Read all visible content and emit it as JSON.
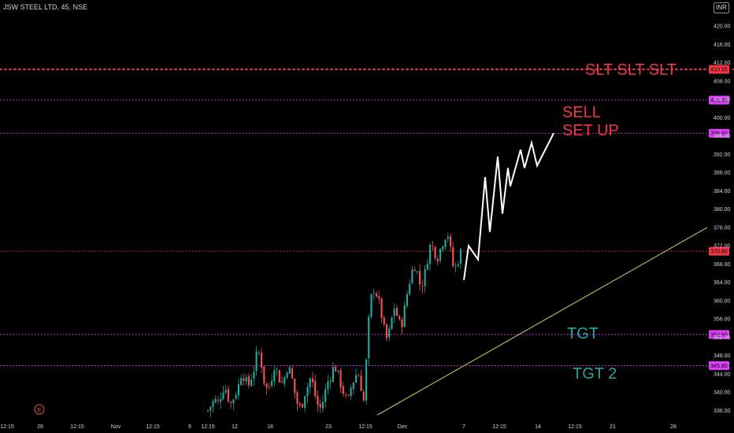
{
  "header": {
    "symbol": "JSW STEEL LTD, 45, NSE",
    "currency": "INR"
  },
  "event_marker": {
    "label": "E"
  },
  "chart_data": {
    "type": "candlestick",
    "ylim": [
      334.0,
      424.0
    ],
    "y_ticks": [
      "420.00",
      "416.00",
      "412.00",
      "408.00",
      "404.00",
      "400.00",
      "396.00",
      "392.00",
      "388.00",
      "384.00",
      "380.00",
      "376.00",
      "372.00",
      "368.00",
      "364.00",
      "360.00",
      "356.00",
      "352.00",
      "348.00",
      "344.00",
      "340.00",
      "336.00"
    ],
    "x_ticks": [
      "12:15",
      "26",
      "12:15",
      "Nov",
      "12:15",
      "9",
      "12:15",
      "12",
      "18",
      "23",
      "12:15",
      "Dec",
      "7",
      "12:15",
      "14",
      "12:15",
      "21",
      "28"
    ],
    "levels": [
      {
        "value": 410.55,
        "label": "410.55",
        "color": "#f23645",
        "style": "dotted"
      },
      {
        "value": 403.85,
        "label": "403.85",
        "color": "#e040fb",
        "style": "dotted"
      },
      {
        "value": 396.6,
        "label": "396.60",
        "color": "#e040fb",
        "style": "dotted"
      },
      {
        "value": 370.8,
        "label": "370.80",
        "color": "#f23645",
        "style": "dotted"
      },
      {
        "value": 352.6,
        "label": "352.60",
        "color": "#e040fb",
        "style": "dotted"
      },
      {
        "value": 345.8,
        "label": "345.80",
        "color": "#e040fb",
        "style": "dotted"
      }
    ],
    "annotations": [
      {
        "text": "SLT SLT SLT",
        "color": "#f23645"
      },
      {
        "text": "SELL",
        "color": "#f23645"
      },
      {
        "text": "SET UP",
        "color": "#f23645"
      },
      {
        "text": "TGT",
        "color": "#26a69a"
      },
      {
        "text": "TGT 2",
        "color": "#26a69a"
      }
    ],
    "trendline": {
      "from_price": 335.0,
      "to_price": 376.0,
      "color": "#d4d45a"
    },
    "projection_path_prices": [
      364.5,
      372.0,
      369.0,
      387.0,
      375.0,
      391.5,
      379.0,
      389.0,
      385.0,
      393.0,
      389.0,
      394.5,
      389.5,
      396.6
    ],
    "candle_count": 100,
    "candle_close_path": [
      336.0,
      337.2,
      338.4,
      337.6,
      339.6,
      341.6,
      339.0,
      337.4,
      339.4,
      340.8,
      344.0,
      343.4,
      341.0,
      343.2,
      345.4,
      349.6,
      346.6,
      342.0,
      340.2,
      342.8,
      346.0,
      344.2,
      341.6,
      343.2,
      345.8,
      344.0,
      340.2,
      337.2,
      336.4,
      339.6,
      341.4,
      343.6,
      339.8,
      337.2,
      336.4,
      339.4,
      342.2,
      343.8,
      346.0,
      344.0,
      341.6,
      339.4,
      337.6,
      341.0,
      343.0,
      344.6,
      341.4,
      337.4,
      352.8,
      360.4,
      362.8,
      360.8,
      357.6,
      353.6,
      351.0,
      355.2,
      358.6,
      356.4,
      354.0,
      357.8,
      362.0,
      365.6,
      368.0,
      366.0,
      362.8,
      365.0,
      369.2,
      372.6,
      371.0,
      369.4,
      371.6,
      373.6,
      375.2,
      370.6,
      366.4,
      368.4,
      370.6
    ]
  }
}
